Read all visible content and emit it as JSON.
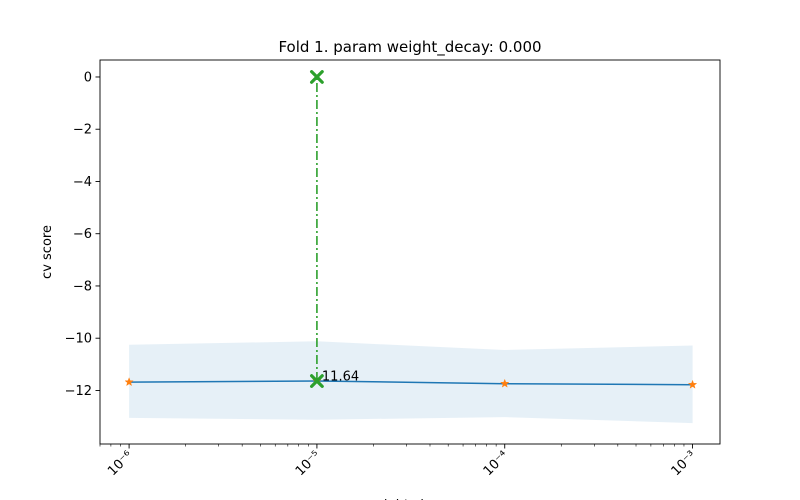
{
  "chart_data": {
    "type": "line",
    "title": "Fold 1. param weight_decay: 0.000",
    "xlabel": "weight_decay",
    "ylabel": "cv score",
    "x_scale": "log",
    "xlim": [
      7e-07,
      0.0014
    ],
    "ylim": [
      -14.05,
      0.65
    ],
    "x_ticks": [
      {
        "value": 1e-06,
        "label": "10⁻⁶"
      },
      {
        "value": 1e-05,
        "label": "10⁻⁵"
      },
      {
        "value": 0.0001,
        "label": "10⁻⁴"
      },
      {
        "value": 0.001,
        "label": "10⁻³"
      }
    ],
    "y_ticks": [
      0,
      -2,
      -4,
      -6,
      -8,
      -10,
      -12
    ],
    "y_tick_labels": [
      "0",
      "−2",
      "−4",
      "−6",
      "−8",
      "−10",
      "−12"
    ],
    "grid": false,
    "x": [
      1e-06,
      1e-05,
      0.0001,
      0.001
    ],
    "series": [
      {
        "values": [
          -11.68,
          -11.64,
          -11.74,
          -11.78
        ],
        "color": "#1f77b4"
      }
    ],
    "band": {
      "upper": [
        -10.25,
        -10.12,
        -10.45,
        -10.28
      ],
      "lower": [
        -13.05,
        -13.12,
        -13.02,
        -13.25
      ],
      "color": "#1f77b4",
      "opacity": 0.11
    },
    "markers_color": "#ff7f0e",
    "best": {
      "x": 1e-05,
      "y": -11.64,
      "label": "11.64",
      "line_to_y": 0,
      "color": "#2ca02c"
    }
  }
}
